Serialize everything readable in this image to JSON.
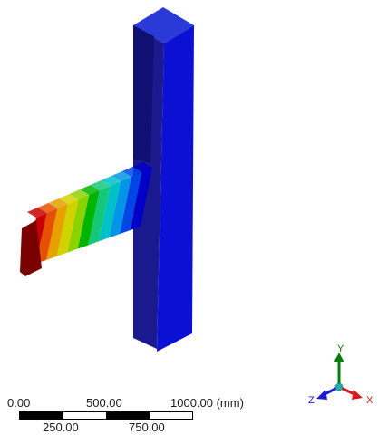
{
  "viewport": {
    "colors": {
      "background": "#ffffff",
      "contour_bands": [
        "#0000c8",
        "#0046e6",
        "#0095e6",
        "#00c0c8",
        "#14c878",
        "#00b400",
        "#8cd200",
        "#d2d200",
        "#e6a000",
        "#e65000",
        "#c80000"
      ],
      "unloaded_body": "#1a1aa8"
    }
  },
  "scale": {
    "labels_top": [
      "0.00",
      "500.00",
      "1000.00 (mm)"
    ],
    "labels_bottom": [
      "250.00",
      "750.00"
    ],
    "segment_colors": [
      "#000000",
      "#ffffff",
      "#000000",
      "#ffffff"
    ]
  },
  "triad": {
    "x_label": "X",
    "y_label": "Y",
    "z_label": "Z",
    "colors": {
      "x": "#d11a1a",
      "y": "#0a7a0a",
      "z": "#1a1ad1",
      "origin": "#20b0b0"
    }
  }
}
